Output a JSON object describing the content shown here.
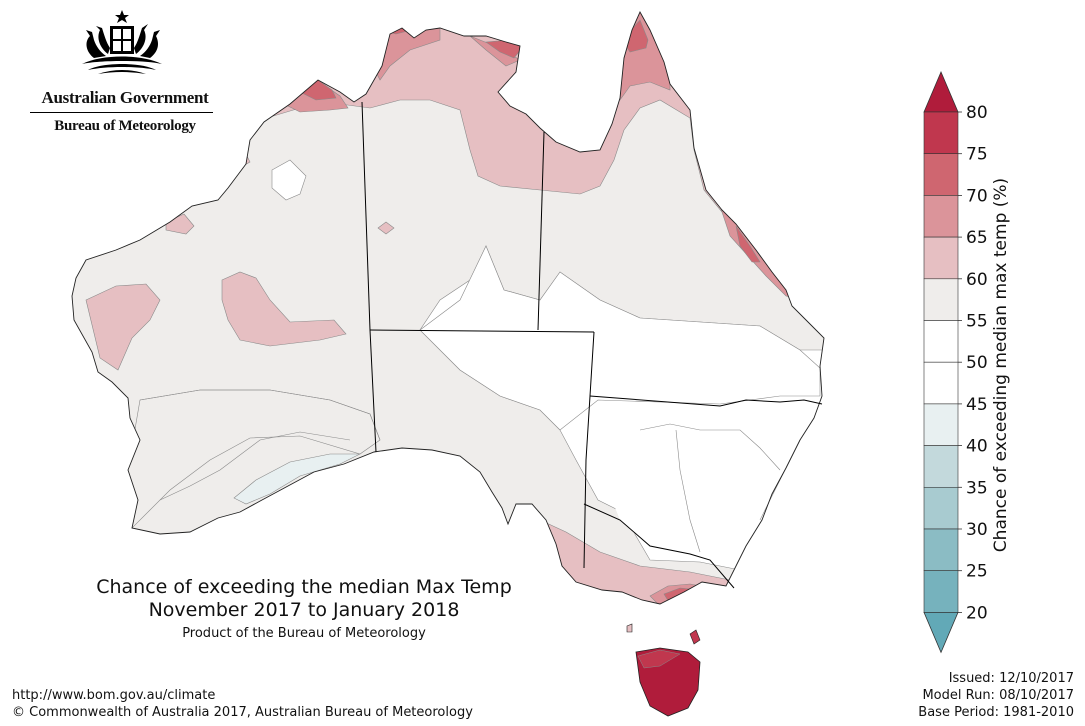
{
  "logo": {
    "government": "Australian Government",
    "agency": "Bureau of Meteorology"
  },
  "map": {
    "title_line1": "Chance of exceeding the median Max Temp",
    "title_line2": "November 2017 to January 2018",
    "subtitle": "Product of the Bureau of Meteorology"
  },
  "legend": {
    "title": "Chance of exceeding median max temp (%)",
    "ticks": [
      "80",
      "75",
      "70",
      "65",
      "60",
      "55",
      "50",
      "45",
      "40",
      "35",
      "30",
      "25",
      "20"
    ],
    "colors": [
      "#c0374e",
      "#cf6670",
      "#db949a",
      "#e6bfc2",
      "#efedeb",
      "#ffffff",
      "#ffffff",
      "#e8f0f1",
      "#c3d9dc",
      "#a8cbd0",
      "#8bbcc4",
      "#76b2bd"
    ],
    "top_arrow_color": "#b01c3b",
    "bottom_arrow_color": "#62a9b7"
  },
  "colors": {
    "state_border": "#000000",
    "contour": "#8a8a8a"
  },
  "footer": {
    "url": "http://www.bom.gov.au/climate",
    "copyright": "© Commonwealth of Australia 2017, Australian Bureau of Meteorology",
    "issued": "Issued: 12/10/2017",
    "model_run": "Model Run: 08/10/2017",
    "base_period": "Base Period: 1981-2010"
  }
}
